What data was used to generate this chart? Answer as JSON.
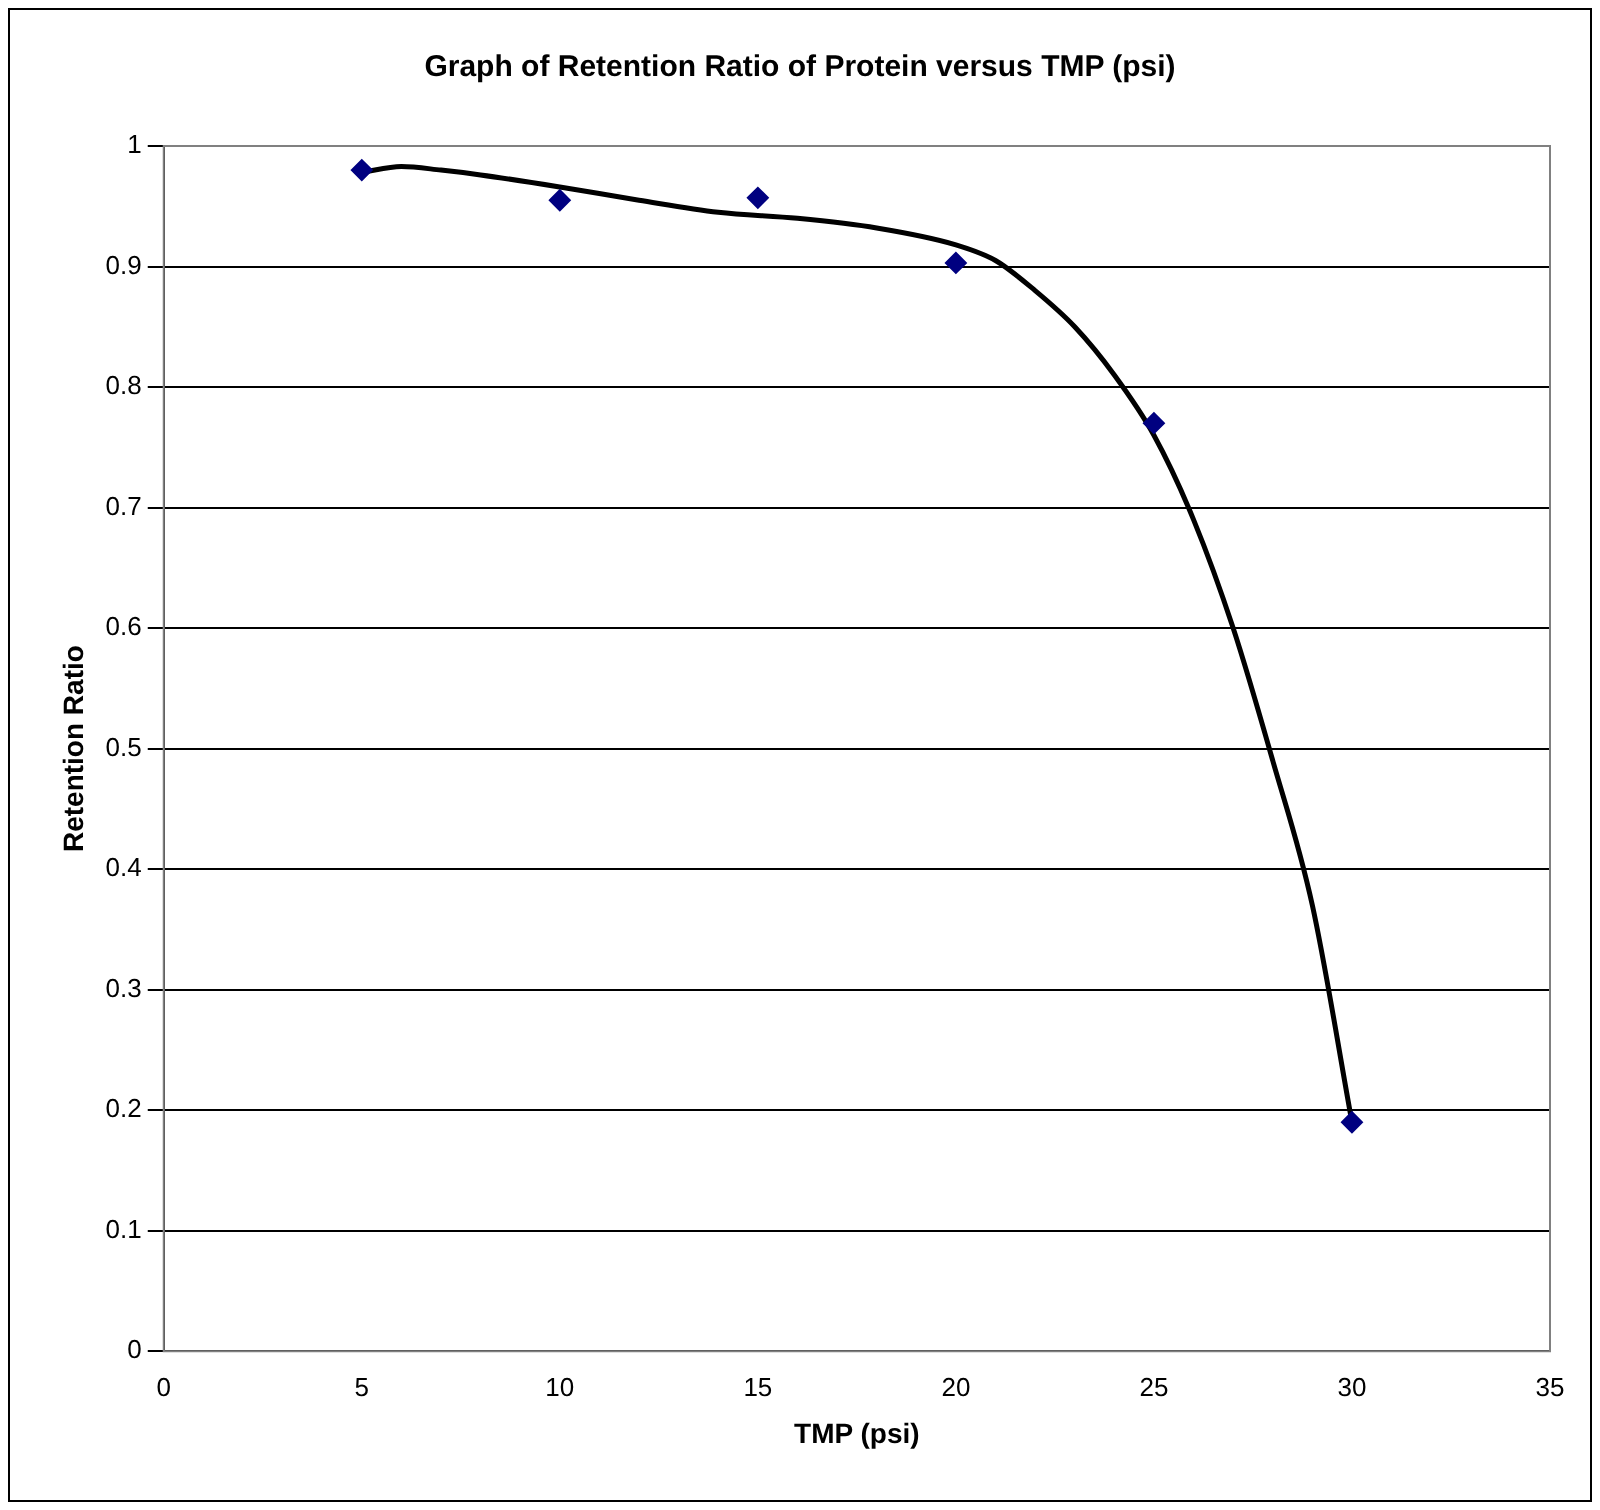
{
  "chart_data": {
    "type": "scatter",
    "title": "Graph of Retention Ratio of Protein versus TMP (psi)",
    "xlabel": "TMP (psi)",
    "ylabel": "Retention Ratio",
    "xlim": [
      0,
      35
    ],
    "xticks": [
      0,
      5,
      10,
      15,
      20,
      25,
      30,
      35
    ],
    "ylim": [
      0,
      1
    ],
    "yticks": [
      0,
      0.1,
      0.2,
      0.3,
      0.4,
      0.5,
      0.6,
      0.7,
      0.8,
      0.9,
      1
    ],
    "grid": "y",
    "legend": false,
    "marker": "diamond",
    "series": [
      {
        "type": "scatter",
        "color": "#000080",
        "x": [
          5,
          10,
          15,
          20,
          25,
          30
        ],
        "values": [
          0.98,
          0.955,
          0.957,
          0.903,
          0.77,
          0.19
        ]
      },
      {
        "type": "line",
        "color": "#000000",
        "marker": "none",
        "x": [
          5,
          6,
          7,
          8,
          10,
          12,
          14,
          16,
          18,
          20,
          21,
          22,
          23,
          24,
          25,
          26,
          27,
          28,
          29,
          30
        ],
        "values": [
          0.978,
          0.983,
          0.98,
          0.976,
          0.966,
          0.955,
          0.945,
          0.94,
          0.932,
          0.918,
          0.905,
          0.88,
          0.85,
          0.81,
          0.76,
          0.69,
          0.6,
          0.49,
          0.37,
          0.19
        ]
      }
    ]
  }
}
